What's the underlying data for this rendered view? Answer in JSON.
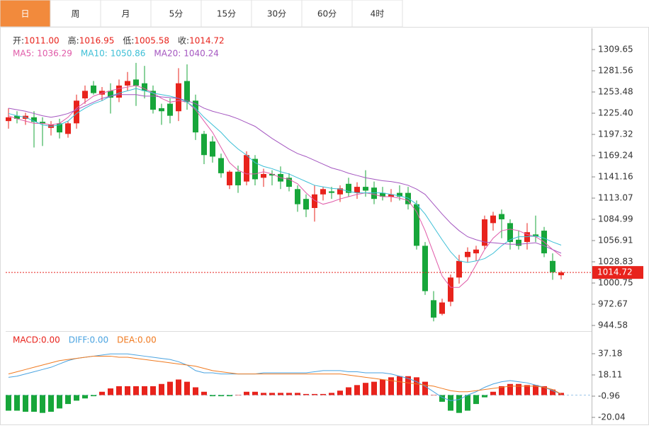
{
  "chart_data": {
    "type": "candlestick",
    "tabs": [
      "日",
      "周",
      "月",
      "5分",
      "15分",
      "30分",
      "60分",
      "4时"
    ],
    "ohlc_names": [
      "开:",
      "高:",
      "低:",
      "收:"
    ],
    "ohlc_labels": [
      "1011.00",
      "1016.95",
      "1005.58",
      "1014.72"
    ],
    "open": [
      1215,
      1222,
      1218,
      1220,
      1214,
      1206,
      1212,
      1198,
      1212,
      1245,
      1262,
      1250,
      1255,
      1246,
      1262,
      1270,
      1265,
      1255,
      1232,
      1238,
      1228,
      1268,
      1242,
      1198,
      1188,
      1166,
      1130,
      1148,
      1135,
      1165,
      1140,
      1145,
      1145,
      1140,
      1125,
      1112,
      1100,
      1118,
      1122,
      1118,
      1132,
      1120,
      1128,
      1127,
      1120,
      1115,
      1120,
      1120,
      1105,
      1050,
      978,
      960,
      976,
      1008,
      1035,
      1040,
      1050,
      1080,
      1092,
      1080,
      1058,
      1055,
      1065,
      1070,
      1030,
      1011.0
    ],
    "high": [
      1232,
      1228,
      1226,
      1228,
      1220,
      1215,
      1218,
      1215,
      1250,
      1262,
      1268,
      1260,
      1265,
      1270,
      1280,
      1292,
      1288,
      1262,
      1238,
      1245,
      1285,
      1290,
      1250,
      1202,
      1195,
      1172,
      1150,
      1156,
      1175,
      1170,
      1152,
      1150,
      1155,
      1146,
      1130,
      1118,
      1130,
      1128,
      1128,
      1130,
      1140,
      1134,
      1150,
      1135,
      1128,
      1125,
      1130,
      1128,
      1110,
      1055,
      990,
      980,
      1012,
      1038,
      1048,
      1050,
      1090,
      1095,
      1098,
      1085,
      1070,
      1080,
      1090,
      1075,
      1040,
      1016.95
    ],
    "low": [
      1205,
      1212,
      1210,
      1180,
      1182,
      1196,
      1192,
      1193,
      1205,
      1238,
      1250,
      1242,
      1225,
      1240,
      1255,
      1235,
      1245,
      1225,
      1210,
      1212,
      1215,
      1230,
      1190,
      1158,
      1160,
      1140,
      1125,
      1120,
      1130,
      1130,
      1128,
      1130,
      1125,
      1122,
      1095,
      1088,
      1082,
      1110,
      1112,
      1108,
      1115,
      1112,
      1115,
      1105,
      1110,
      1108,
      1110,
      1098,
      1045,
      985,
      950,
      958,
      970,
      1000,
      1028,
      1030,
      1045,
      1070,
      1060,
      1045,
      1045,
      1045,
      1055,
      1035,
      1005,
      1005.58
    ],
    "close": [
      1220,
      1218,
      1222,
      1214,
      1212,
      1210,
      1200,
      1212,
      1242,
      1255,
      1252,
      1255,
      1246,
      1262,
      1268,
      1262,
      1255,
      1230,
      1228,
      1222,
      1265,
      1240,
      1200,
      1170,
      1168,
      1146,
      1148,
      1130,
      1170,
      1138,
      1145,
      1143,
      1135,
      1128,
      1105,
      1098,
      1118,
      1125,
      1120,
      1126,
      1120,
      1128,
      1123,
      1112,
      1115,
      1118,
      1115,
      1105,
      1050,
      990,
      955,
      975,
      1008,
      1030,
      1042,
      1045,
      1085,
      1090,
      1085,
      1055,
      1050,
      1068,
      1062,
      1040,
      1015,
      1014.72
    ],
    "up_color": "#e8231c",
    "down_color": "#17a63a",
    "series": [
      {
        "name": "MA5",
        "color": "#e05aa8",
        "values": [
          1222,
          1218,
          1215,
          1212,
          1212,
          1210,
          1212,
          1220,
          1232,
          1240,
          1248,
          1252,
          1255,
          1258,
          1260,
          1262,
          1258,
          1252,
          1245,
          1240,
          1242,
          1240,
          1230,
          1215,
          1200,
          1180,
          1160,
          1150,
          1145,
          1145,
          1148,
          1145,
          1140,
          1138,
          1132,
          1120,
          1110,
          1105,
          1108,
          1112,
          1115,
          1118,
          1120,
          1118,
          1115,
          1115,
          1113,
          1110,
          1095,
          1070,
          1040,
          1010,
          995,
          995,
          1005,
          1025,
          1045,
          1060,
          1070,
          1072,
          1070,
          1065,
          1062,
          1055,
          1045,
          1036.29
        ]
      },
      {
        "name": "MA10",
        "color": "#3cbfd6",
        "values": [
          1225,
          1222,
          1220,
          1215,
          1210,
          1208,
          1210,
          1215,
          1225,
          1232,
          1238,
          1242,
          1248,
          1252,
          1255,
          1258,
          1255,
          1252,
          1250,
          1248,
          1245,
          1240,
          1232,
          1220,
          1210,
          1200,
          1188,
          1178,
          1170,
          1160,
          1155,
          1152,
          1148,
          1145,
          1140,
          1135,
          1130,
          1128,
          1126,
          1125,
          1122,
          1120,
          1120,
          1120,
          1120,
          1118,
          1116,
          1113,
          1105,
          1092,
          1075,
          1058,
          1042,
          1030,
          1028,
          1030,
          1033,
          1040,
          1050,
          1058,
          1062,
          1062,
          1063,
          1060,
          1055,
          1050.86
        ]
      },
      {
        "name": "MA20",
        "color": "#a456c0",
        "values": [
          1232,
          1230,
          1228,
          1225,
          1222,
          1220,
          1222,
          1225,
          1230,
          1235,
          1240,
          1245,
          1248,
          1250,
          1250,
          1250,
          1248,
          1248,
          1247,
          1246,
          1245,
          1242,
          1238,
          1232,
          1228,
          1225,
          1222,
          1218,
          1213,
          1208,
          1200,
          1192,
          1185,
          1178,
          1172,
          1168,
          1163,
          1158,
          1153,
          1150,
          1146,
          1143,
          1140,
          1138,
          1136,
          1135,
          1133,
          1130,
          1125,
          1118,
          1105,
          1092,
          1080,
          1070,
          1062,
          1058,
          1055,
          1054,
          1053,
          1052,
          1052,
          1053,
          1054,
          1050,
          1045,
          1040.24
        ]
      }
    ],
    "last": 1014.72,
    "ylim": [
      937.15,
      1337.74
    ],
    "yticks": [
      1309.65,
      1281.56,
      1253.48,
      {
        "value": 1225.4,
        "label": "1225.40"
      },
      1197.32,
      1169.24,
      1141.16,
      1113.07,
      1084.99,
      1056.91,
      1028.83,
      1000.75,
      972.67,
      944.58
    ],
    "macd": {
      "names": [
        "MACD:",
        "DIFF:",
        "DEA:"
      ],
      "labels": [
        "0.00",
        "0.00",
        "0.00"
      ],
      "colors": [
        "#e8231c",
        "#4aa3e0",
        "#f07a20"
      ],
      "hist": [
        -14,
        -14,
        -15,
        -15,
        -16,
        -15,
        -12,
        -8,
        -5,
        -3,
        -1,
        3,
        6,
        8,
        8,
        8,
        8,
        8,
        10,
        12,
        14,
        12,
        7,
        3,
        -1,
        -1,
        -1,
        0,
        3,
        3,
        2,
        2,
        2,
        2,
        2,
        1,
        1,
        1,
        2,
        4,
        7,
        9,
        11,
        12,
        14,
        16,
        17,
        17,
        16,
        12,
        0,
        -6,
        -14,
        -16,
        -14,
        -8,
        -2,
        3,
        8,
        10,
        10,
        9,
        9,
        8,
        5,
        2
      ],
      "diff": [
        16,
        17,
        19,
        21,
        23,
        25,
        28,
        31,
        33,
        34,
        35,
        36,
        37,
        37,
        37,
        36,
        35,
        34,
        33,
        32,
        30,
        27,
        22,
        20,
        20,
        19,
        19,
        19,
        19,
        19,
        20,
        20,
        20,
        20,
        20,
        20,
        21,
        22,
        22,
        22,
        21,
        21,
        20,
        20,
        20,
        19,
        17,
        15,
        12,
        8,
        3,
        -2,
        -5,
        -4,
        0,
        3,
        7,
        10,
        12,
        13,
        12,
        11,
        9,
        7,
        4,
        1
      ],
      "dea": [
        19,
        21,
        23,
        25,
        27,
        29,
        31,
        32,
        33,
        34,
        35,
        35,
        35,
        34,
        34,
        33,
        32,
        31,
        30,
        29,
        28,
        27,
        26,
        24,
        22,
        21,
        20,
        19,
        19,
        19,
        19,
        19,
        19,
        19,
        19,
        19,
        19,
        19,
        19,
        19,
        18,
        17,
        16,
        15,
        14,
        13,
        12,
        11,
        10,
        9,
        8,
        6,
        4,
        3,
        3,
        4,
        5,
        6,
        7,
        8,
        8,
        8,
        8,
        7,
        5,
        1
      ],
      "ylim": [
        -26.39,
        56.26
      ],
      "yticks": [
        37.18,
        18.11,
        -0.96,
        -20.04
      ]
    }
  }
}
